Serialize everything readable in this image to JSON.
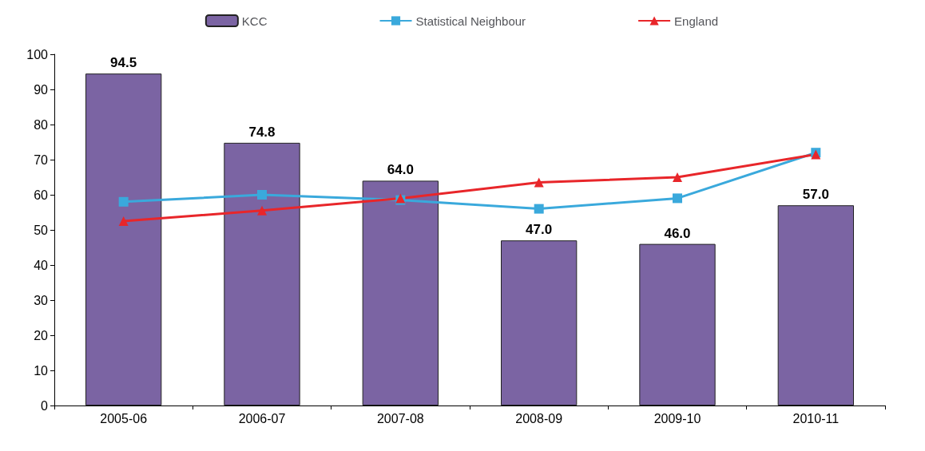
{
  "chart_data": {
    "type": "bar",
    "categories": [
      "2005-06",
      "2006-07",
      "2007-08",
      "2008-09",
      "2009-10",
      "2010-11"
    ],
    "series": [
      {
        "name": "KCC",
        "color": "#7b64a3",
        "values": [
          94.5,
          74.8,
          64.0,
          47.0,
          46.0,
          57.0
        ],
        "value_labels": [
          "94.5",
          "74.8",
          "64.0",
          "47.0",
          "46.0",
          "57.0"
        ]
      },
      {
        "name": "Statistical Neighbour",
        "type": "line",
        "color": "#3aa9dc",
        "marker": "square",
        "values": [
          58,
          60,
          58.5,
          56,
          59,
          72
        ]
      },
      {
        "name": "England",
        "type": "line",
        "color": "#e8262a",
        "marker": "triangle",
        "values": [
          52.5,
          55.5,
          59,
          63.5,
          65,
          71.5
        ]
      }
    ],
    "ylim": [
      0,
      100
    ],
    "yticks": [
      0,
      10,
      20,
      30,
      40,
      50,
      60,
      70,
      80,
      90,
      100
    ],
    "grid": false,
    "legend": "top"
  }
}
